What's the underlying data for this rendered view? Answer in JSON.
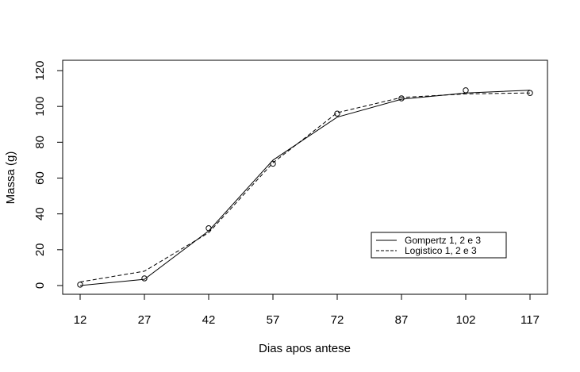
{
  "chart_data": {
    "type": "line",
    "xlabel": "Dias apos antese",
    "ylabel": "Massa (g)",
    "xlim": [
      12,
      117
    ],
    "ylim": [
      0,
      120
    ],
    "x_ticks": [
      12,
      27,
      42,
      57,
      72,
      87,
      102,
      117
    ],
    "y_ticks": [
      0,
      20,
      40,
      60,
      80,
      100,
      120
    ],
    "x_tick_labels": [
      "12",
      "27",
      "42",
      "57",
      "72",
      "87",
      "102",
      "117"
    ],
    "y_tick_labels": [
      "0",
      "20",
      "40",
      "60",
      "80",
      "100",
      "120"
    ],
    "grid": false,
    "legend_position": "bottom-right",
    "observed": {
      "x": [
        12,
        27,
        42,
        57,
        72,
        87,
        102,
        117
      ],
      "y": [
        0.5,
        4,
        32,
        68,
        96,
        104.5,
        109,
        107.5
      ]
    },
    "series": [
      {
        "name": "Gompertz 1, 2 e 3",
        "line_style": "solid",
        "x": [
          12,
          27,
          42,
          57,
          72,
          87,
          102,
          117
        ],
        "y": [
          0,
          3.5,
          30.5,
          70,
          94,
          104,
          107.5,
          109
        ]
      },
      {
        "name": "Logistico 1, 2 e 3",
        "line_style": "dashed",
        "x": [
          12,
          27,
          42,
          57,
          72,
          87,
          102,
          117
        ],
        "y": [
          2,
          8,
          29.5,
          68.5,
          96.5,
          105,
          107,
          107.5
        ]
      }
    ]
  }
}
